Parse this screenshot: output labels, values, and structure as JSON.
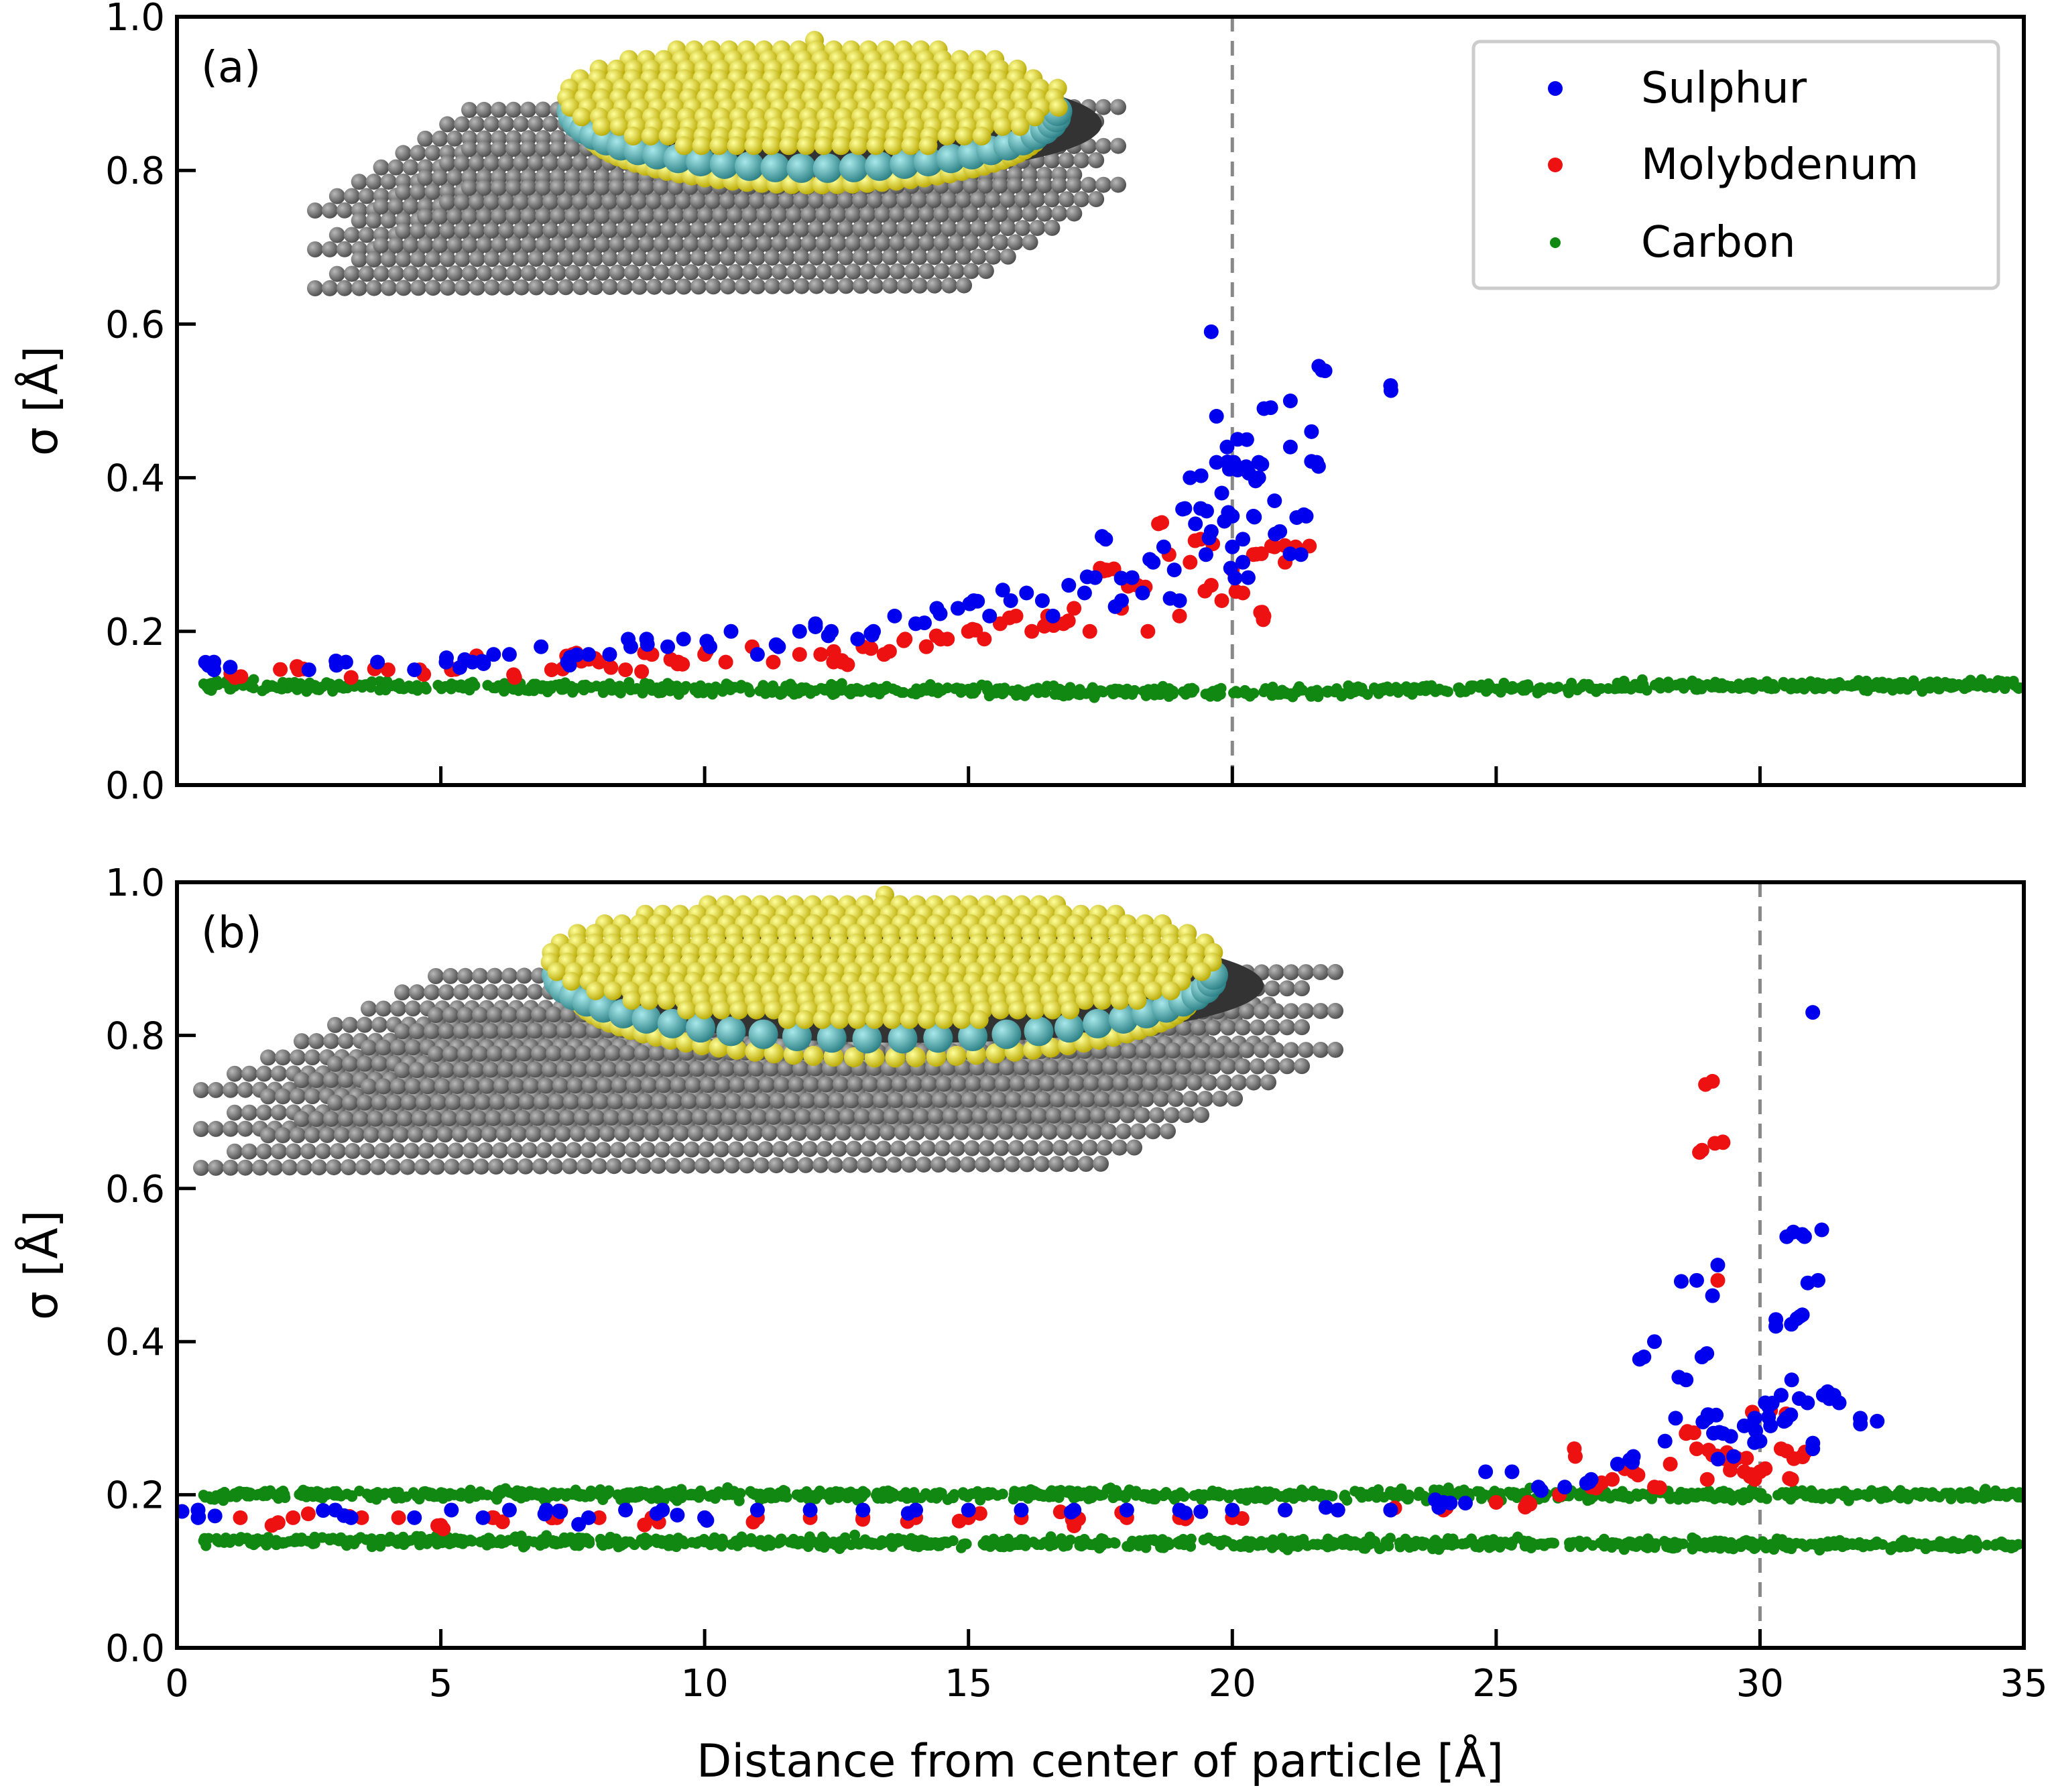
{
  "figure": {
    "xlabel": "Distance from center of particle [Å]",
    "series_names": [
      "Sulphur",
      "Molybdenum",
      "Carbon"
    ]
  },
  "colors": {
    "Sulphur": "#0000ee",
    "Molybdenum": "#ee1111",
    "Carbon": "#118811",
    "vline": "#888888",
    "graphene": "#5a5a5a",
    "sulphur_atom": "#e6d820",
    "molybdenum_atom": "#3fa3a8"
  },
  "chart_data": [
    {
      "type": "scatter",
      "panel_label": "(a)",
      "xlabel": "",
      "ylabel": "σ [Å]",
      "xlim": [
        0,
        35
      ],
      "ylim": [
        0,
        1.0
      ],
      "xticks": [
        0,
        5,
        10,
        15,
        20,
        25,
        30,
        35
      ],
      "xtick_labels": [],
      "yticks": [
        "0.0",
        "0.2",
        "0.4",
        "0.6",
        "0.8",
        "1.0"
      ],
      "vline_x": 20,
      "legend": {
        "placement": "top-right",
        "entries": [
          "Sulphur",
          "Molybdenum",
          "Carbon"
        ]
      },
      "inset": "MoS2 nanoparticle on three-layer graphene (schematic)",
      "series": [
        {
          "name": "Sulphur",
          "points": [
            [
              0.7,
              0.16
            ],
            [
              0.7,
              0.15
            ],
            [
              2.5,
              0.15
            ],
            [
              3.2,
              0.16
            ],
            [
              3.8,
              0.16
            ],
            [
              4.5,
              0.15
            ],
            [
              5.1,
              0.16
            ],
            [
              5.6,
              0.16
            ],
            [
              6.0,
              0.17
            ],
            [
              6.3,
              0.17
            ],
            [
              6.9,
              0.18
            ],
            [
              7.4,
              0.16
            ],
            [
              7.8,
              0.17
            ],
            [
              8.2,
              0.17
            ],
            [
              8.6,
              0.18
            ],
            [
              8.9,
              0.19
            ],
            [
              9.3,
              0.18
            ],
            [
              9.6,
              0.19
            ],
            [
              10.1,
              0.18
            ],
            [
              10.5,
              0.2
            ],
            [
              11.0,
              0.17
            ],
            [
              11.4,
              0.18
            ],
            [
              11.8,
              0.2
            ],
            [
              12.1,
              0.21
            ],
            [
              12.4,
              0.2
            ],
            [
              12.9,
              0.19
            ],
            [
              13.2,
              0.2
            ],
            [
              13.6,
              0.22
            ],
            [
              14.0,
              0.21
            ],
            [
              14.4,
              0.23
            ],
            [
              14.8,
              0.23
            ],
            [
              15.1,
              0.24
            ],
            [
              15.4,
              0.22
            ],
            [
              15.8,
              0.24
            ],
            [
              16.1,
              0.25
            ],
            [
              16.4,
              0.24
            ],
            [
              16.6,
              0.22
            ],
            [
              16.9,
              0.26
            ],
            [
              17.2,
              0.25
            ],
            [
              17.4,
              0.27
            ],
            [
              17.6,
              0.32
            ],
            [
              17.9,
              0.24
            ],
            [
              18.1,
              0.27
            ],
            [
              18.3,
              0.25
            ],
            [
              18.5,
              0.29
            ],
            [
              18.7,
              0.31
            ],
            [
              18.9,
              0.28
            ],
            [
              19.0,
              0.24
            ],
            [
              19.1,
              0.36
            ],
            [
              19.2,
              0.4
            ],
            [
              19.3,
              0.34
            ],
            [
              19.4,
              0.36
            ],
            [
              19.5,
              0.3
            ],
            [
              19.6,
              0.33
            ],
            [
              19.6,
              0.59
            ],
            [
              19.7,
              0.42
            ],
            [
              19.7,
              0.48
            ],
            [
              19.8,
              0.38
            ],
            [
              19.9,
              0.44
            ],
            [
              20.0,
              0.31
            ],
            [
              20.0,
              0.35
            ],
            [
              20.1,
              0.41
            ],
            [
              20.1,
              0.45
            ],
            [
              20.2,
              0.29
            ],
            [
              20.2,
              0.32
            ],
            [
              20.3,
              0.27
            ],
            [
              20.4,
              0.35
            ],
            [
              20.5,
              0.42
            ],
            [
              20.5,
              0.4
            ],
            [
              20.6,
              0.49
            ],
            [
              20.8,
              0.37
            ],
            [
              20.9,
              0.33
            ],
            [
              21.1,
              0.44
            ],
            [
              21.1,
              0.5
            ],
            [
              21.3,
              0.3
            ],
            [
              21.4,
              0.35
            ],
            [
              21.5,
              0.46
            ],
            [
              21.6,
              0.42
            ],
            [
              21.7,
              0.54
            ],
            [
              23.0,
              0.52
            ]
          ]
        },
        {
          "name": "Molybdenum",
          "points": [
            [
              1.1,
              0.14
            ],
            [
              2.3,
              0.15
            ],
            [
              3.3,
              0.14
            ],
            [
              4.0,
              0.15
            ],
            [
              4.6,
              0.15
            ],
            [
              5.2,
              0.15
            ],
            [
              5.8,
              0.16
            ],
            [
              6.4,
              0.14
            ],
            [
              7.1,
              0.15
            ],
            [
              7.5,
              0.17
            ],
            [
              8.0,
              0.16
            ],
            [
              8.5,
              0.15
            ],
            [
              9.0,
              0.17
            ],
            [
              9.5,
              0.16
            ],
            [
              10.0,
              0.17
            ],
            [
              10.4,
              0.16
            ],
            [
              10.9,
              0.18
            ],
            [
              11.3,
              0.16
            ],
            [
              11.8,
              0.17
            ],
            [
              12.2,
              0.17
            ],
            [
              12.6,
              0.16
            ],
            [
              13.0,
              0.18
            ],
            [
              13.4,
              0.17
            ],
            [
              13.8,
              0.19
            ],
            [
              14.2,
              0.18
            ],
            [
              14.6,
              0.19
            ],
            [
              15.0,
              0.2
            ],
            [
              15.3,
              0.19
            ],
            [
              15.6,
              0.21
            ],
            [
              15.9,
              0.22
            ],
            [
              16.2,
              0.2
            ],
            [
              16.5,
              0.22
            ],
            [
              16.8,
              0.21
            ],
            [
              17.0,
              0.23
            ],
            [
              17.3,
              0.2
            ],
            [
              17.6,
              0.28
            ],
            [
              17.9,
              0.23
            ],
            [
              18.2,
              0.26
            ],
            [
              18.4,
              0.2
            ],
            [
              18.6,
              0.34
            ],
            [
              18.8,
              0.3
            ],
            [
              19.0,
              0.22
            ],
            [
              19.2,
              0.29
            ],
            [
              19.4,
              0.32
            ],
            [
              19.6,
              0.26
            ],
            [
              19.8,
              0.24
            ],
            [
              20.0,
              0.28
            ],
            [
              20.2,
              0.25
            ],
            [
              20.4,
              0.3
            ],
            [
              20.6,
              0.22
            ],
            [
              20.8,
              0.31
            ],
            [
              21.0,
              0.29
            ],
            [
              21.2,
              0.31
            ]
          ]
        },
        {
          "name": "Carbon",
          "band": [
            [
              0.5,
              0.13
            ],
            [
              10.0,
              0.125
            ],
            [
              20.0,
              0.12
            ],
            [
              28.0,
              0.13
            ],
            [
              35.0,
              0.13
            ]
          ],
          "spread": 0.02
        }
      ]
    },
    {
      "type": "scatter",
      "panel_label": "(b)",
      "xlabel": "Distance from center of particle [Å]",
      "ylabel": "σ [Å]",
      "xlim": [
        0,
        35
      ],
      "ylim": [
        0,
        1.0
      ],
      "xticks": [
        0,
        5,
        10,
        15,
        20,
        25,
        30,
        35
      ],
      "xtick_labels": [
        "0",
        "5",
        "10",
        "15",
        "20",
        "25",
        "30",
        "35"
      ],
      "yticks": [
        "0.0",
        "0.2",
        "0.4",
        "0.6",
        "0.8",
        "1.0"
      ],
      "vline_x": 30,
      "inset": "MoS2 nanoparticle on three-layer graphene (schematic)",
      "series": [
        {
          "name": "Sulphur",
          "points": [
            [
              0.4,
              0.18
            ],
            [
              0.4,
              0.17
            ],
            [
              3.0,
              0.18
            ],
            [
              3.3,
              0.17
            ],
            [
              4.5,
              0.17
            ],
            [
              5.2,
              0.18
            ],
            [
              5.8,
              0.17
            ],
            [
              6.3,
              0.18
            ],
            [
              7.0,
              0.18
            ],
            [
              7.8,
              0.17
            ],
            [
              8.5,
              0.18
            ],
            [
              9.2,
              0.18
            ],
            [
              10.0,
              0.17
            ],
            [
              11.0,
              0.18
            ],
            [
              12.0,
              0.18
            ],
            [
              13.0,
              0.18
            ],
            [
              14.0,
              0.18
            ],
            [
              15.0,
              0.18
            ],
            [
              16.0,
              0.18
            ],
            [
              17.0,
              0.18
            ],
            [
              18.0,
              0.18
            ],
            [
              19.0,
              0.18
            ],
            [
              20.0,
              0.18
            ],
            [
              21.0,
              0.18
            ],
            [
              22.0,
              0.18
            ],
            [
              23.0,
              0.18
            ],
            [
              24.0,
              0.19
            ],
            [
              24.8,
              0.23
            ],
            [
              25.3,
              0.23
            ],
            [
              25.8,
              0.21
            ],
            [
              26.3,
              0.21
            ],
            [
              26.8,
              0.22
            ],
            [
              27.3,
              0.24
            ],
            [
              27.6,
              0.25
            ],
            [
              27.8,
              0.38
            ],
            [
              28.0,
              0.4
            ],
            [
              28.2,
              0.27
            ],
            [
              28.4,
              0.3
            ],
            [
              28.6,
              0.35
            ],
            [
              28.8,
              0.48
            ],
            [
              28.9,
              0.38
            ],
            [
              29.0,
              0.3
            ],
            [
              29.1,
              0.46
            ],
            [
              29.2,
              0.5
            ],
            [
              29.3,
              0.28
            ],
            [
              29.5,
              0.25
            ],
            [
              29.7,
              0.29
            ],
            [
              29.9,
              0.3
            ],
            [
              30.0,
              0.27
            ],
            [
              30.1,
              0.32
            ],
            [
              30.2,
              0.29
            ],
            [
              30.3,
              0.42
            ],
            [
              30.4,
              0.33
            ],
            [
              30.5,
              0.3
            ],
            [
              30.6,
              0.35
            ],
            [
              30.7,
              0.43
            ],
            [
              30.8,
              0.54
            ],
            [
              30.9,
              0.32
            ],
            [
              31.0,
              0.26
            ],
            [
              31.1,
              0.48
            ],
            [
              31.2,
              0.33
            ],
            [
              31.4,
              0.33
            ],
            [
              31.5,
              0.32
            ],
            [
              31.9,
              0.3
            ],
            [
              31.0,
              0.83
            ]
          ]
        },
        {
          "name": "Molybdenum",
          "points": [
            [
              1.2,
              0.17
            ],
            [
              1.8,
              0.16
            ],
            [
              2.2,
              0.17
            ],
            [
              3.5,
              0.17
            ],
            [
              4.2,
              0.17
            ],
            [
              5.0,
              0.16
            ],
            [
              6.0,
              0.17
            ],
            [
              7.2,
              0.17
            ],
            [
              8.0,
              0.17
            ],
            [
              9.0,
              0.17
            ],
            [
              10.0,
              0.17
            ],
            [
              11.0,
              0.17
            ],
            [
              12.0,
              0.17
            ],
            [
              13.0,
              0.17
            ],
            [
              14.0,
              0.17
            ],
            [
              15.0,
              0.17
            ],
            [
              16.0,
              0.17
            ],
            [
              17.0,
              0.17
            ],
            [
              18.0,
              0.17
            ],
            [
              19.0,
              0.17
            ],
            [
              20.0,
              0.17
            ],
            [
              21.0,
              0.18
            ],
            [
              22.0,
              0.18
            ],
            [
              23.0,
              0.18
            ],
            [
              24.0,
              0.18
            ],
            [
              25.0,
              0.19
            ],
            [
              25.6,
              0.19
            ],
            [
              26.2,
              0.2
            ],
            [
              26.5,
              0.25
            ],
            [
              26.8,
              0.21
            ],
            [
              27.2,
              0.22
            ],
            [
              27.6,
              0.23
            ],
            [
              28.0,
              0.21
            ],
            [
              28.3,
              0.24
            ],
            [
              28.6,
              0.28
            ],
            [
              28.8,
              0.26
            ],
            [
              28.9,
              0.65
            ],
            [
              29.0,
              0.22
            ],
            [
              29.1,
              0.74
            ],
            [
              29.2,
              0.48
            ],
            [
              29.3,
              0.25
            ],
            [
              29.3,
              0.66
            ],
            [
              29.5,
              0.25
            ],
            [
              29.7,
              0.23
            ],
            [
              29.9,
              0.22
            ],
            [
              30.0,
              0.23
            ],
            [
              30.2,
              0.31
            ],
            [
              30.4,
              0.26
            ],
            [
              30.6,
              0.22
            ],
            [
              30.8,
              0.25
            ]
          ]
        },
        {
          "name": "Carbon",
          "band": [
            [
              0.5,
              0.2
            ],
            [
              30.0,
              0.2
            ],
            [
              35.0,
              0.2
            ]
          ],
          "band2": [
            [
              0.5,
              0.14
            ],
            [
              30.0,
              0.135
            ],
            [
              35.0,
              0.135
            ]
          ],
          "spread": 0.02
        }
      ]
    }
  ]
}
